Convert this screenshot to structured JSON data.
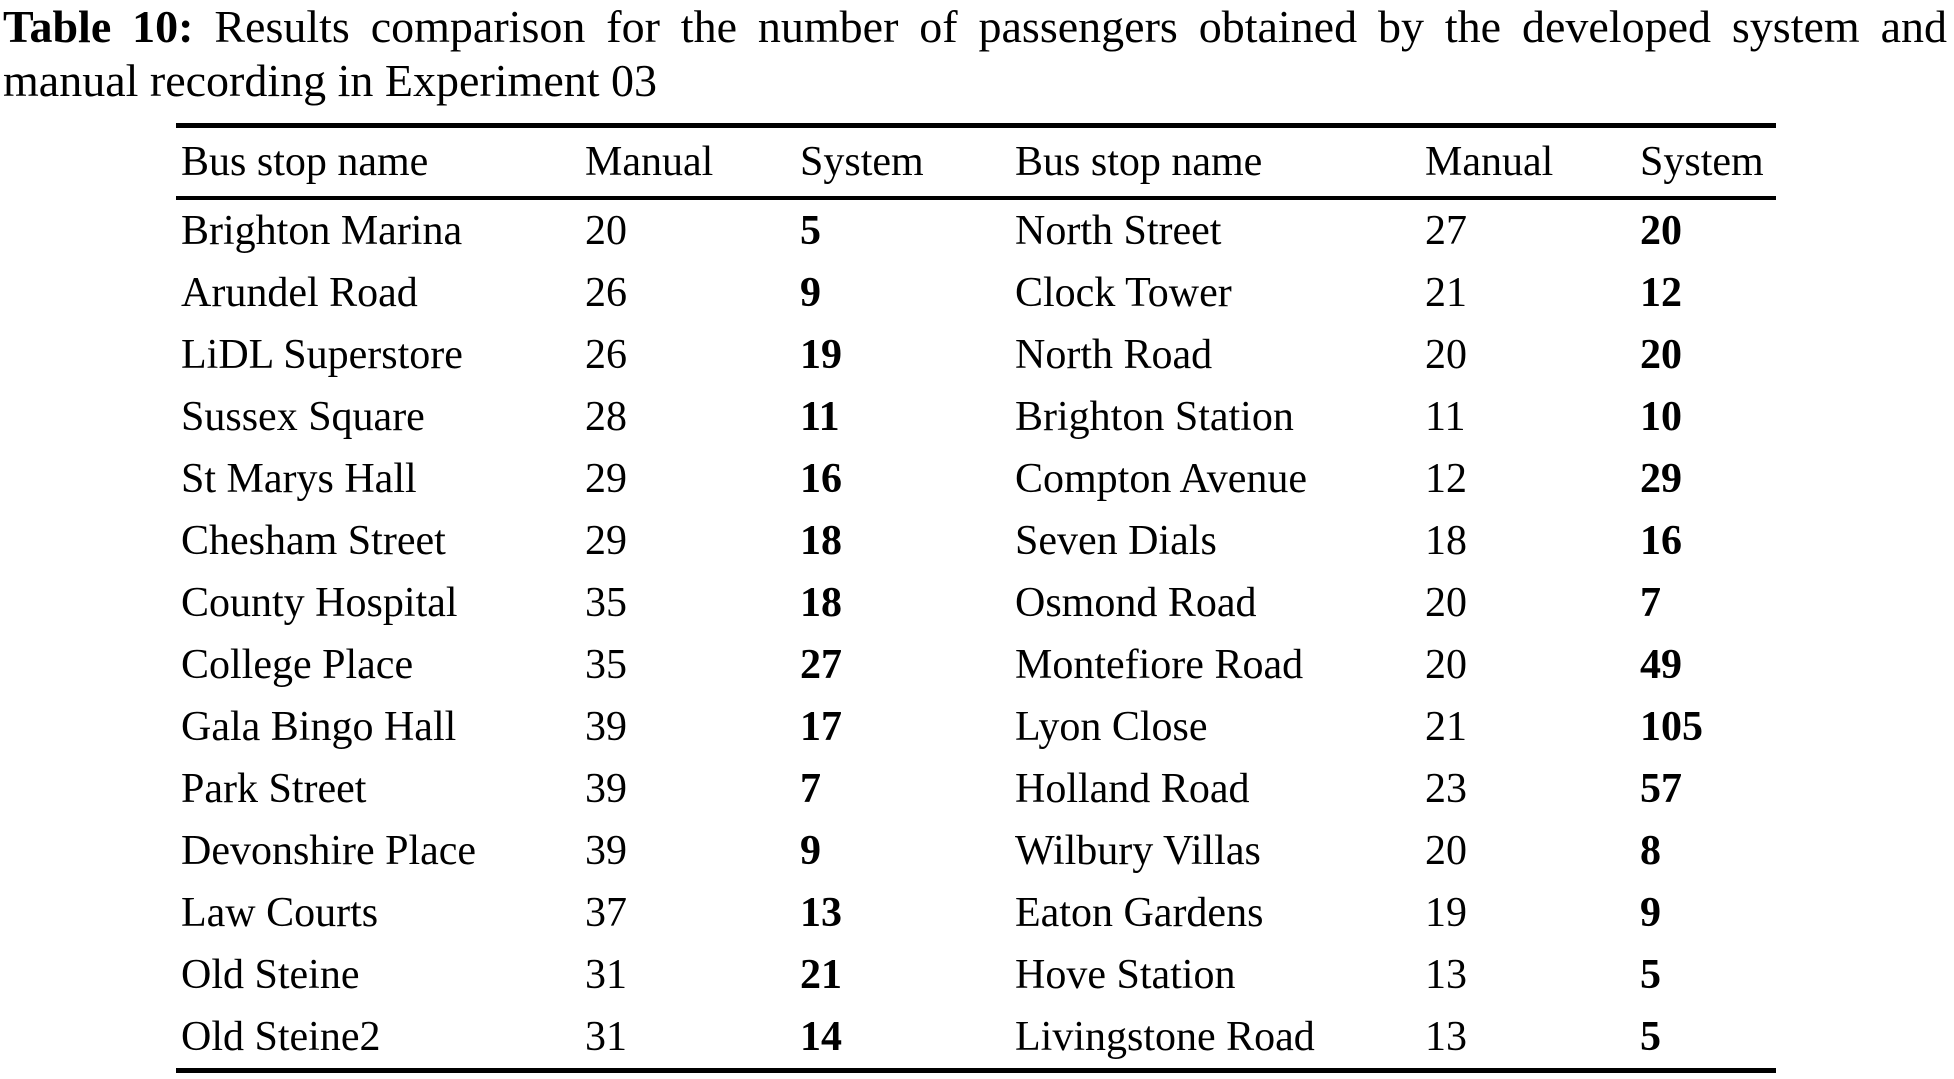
{
  "colors": {
    "text": "#000000",
    "background": "#ffffff"
  },
  "caption": {
    "label": "Table 10:",
    "line1": "Results comparison for the number of passengers obtained by the developed system and",
    "line2": "manual recording in Experiment 03"
  },
  "table": {
    "headers": [
      "Bus stop name",
      "Manual",
      "System",
      "Bus stop name",
      "Manual",
      "System"
    ],
    "col_kinds": [
      "name",
      "num",
      "sys",
      "name",
      "num",
      "sys"
    ],
    "rows": [
      [
        "Brighton Marina",
        "20",
        "5",
        "North Street",
        "27",
        "20"
      ],
      [
        "Arundel Road",
        "26",
        "9",
        "Clock Tower",
        "21",
        "12"
      ],
      [
        "LiDL Superstore",
        "26",
        "19",
        "North Road",
        "20",
        "20"
      ],
      [
        "Sussex Square",
        "28",
        "11",
        "Brighton Station",
        "11",
        "10"
      ],
      [
        "St Marys Hall",
        "29",
        "16",
        "Compton Avenue",
        "12",
        "29"
      ],
      [
        "Chesham Street",
        "29",
        "18",
        "Seven Dials",
        "18",
        "16"
      ],
      [
        "County Hospital",
        "35",
        "18",
        "Osmond Road",
        "20",
        "7"
      ],
      [
        "College Place",
        "35",
        "27",
        "Montefiore Road",
        "20",
        "49"
      ],
      [
        "Gala Bingo Hall",
        "39",
        "17",
        "Lyon Close",
        "21",
        "105"
      ],
      [
        "Park Street",
        "39",
        "7",
        "Holland Road",
        "23",
        "57"
      ],
      [
        "Devonshire Place",
        "39",
        "9",
        "Wilbury Villas",
        "20",
        "8"
      ],
      [
        "Law Courts",
        "37",
        "13",
        "Eaton Gardens",
        "19",
        "9"
      ],
      [
        "Old Steine",
        "31",
        "21",
        "Hove Station",
        "13",
        "5"
      ],
      [
        "Old Steine2",
        "31",
        "14",
        "Livingstone Road",
        "13",
        "5"
      ]
    ]
  }
}
